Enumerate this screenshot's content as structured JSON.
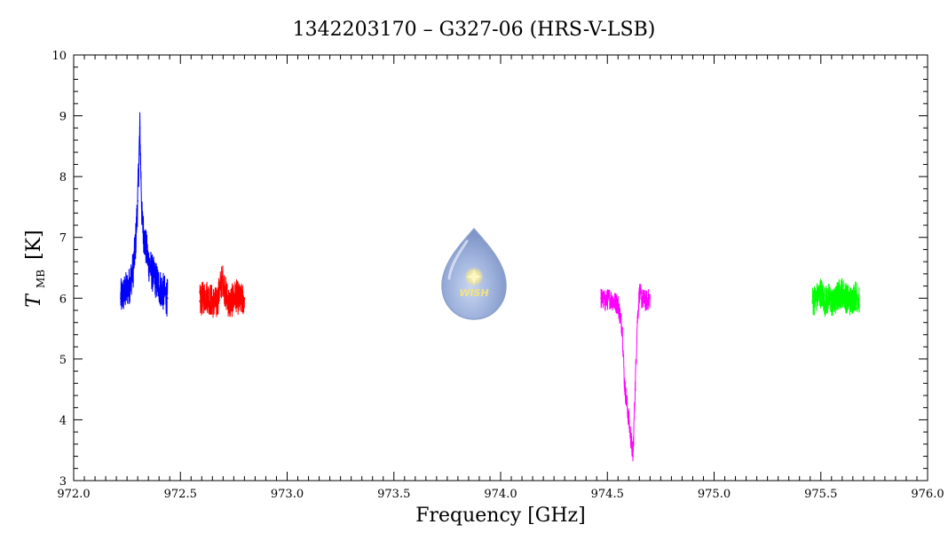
{
  "chart_data": {
    "type": "line",
    "title": "1342203170 – G327-06 (HRS-V-LSB)",
    "xlabel": "Frequency [GHz]",
    "ylabel_main": "T",
    "ylabel_sub": "MB",
    "ylabel_unit": "[K]",
    "xlim": [
      972.0,
      976.0
    ],
    "ylim": [
      3,
      10
    ],
    "xticks": [
      "972.0",
      "972.5",
      "973.0",
      "973.5",
      "974.0",
      "974.5",
      "975.0",
      "975.5",
      "976.0"
    ],
    "yticks": [
      "3",
      "4",
      "5",
      "6",
      "7",
      "8",
      "9",
      "10"
    ],
    "grid": false,
    "legend": "none",
    "series": [
      {
        "color": "#0000ff",
        "x": [
          972.22,
          972.24,
          972.26,
          972.28,
          972.29,
          972.3,
          972.31,
          972.32,
          972.33,
          972.34,
          972.35,
          972.37,
          972.4,
          972.42,
          972.44
        ],
        "y": [
          6.0,
          6.1,
          6.2,
          6.5,
          6.9,
          7.6,
          8.8,
          7.3,
          7.0,
          6.8,
          6.6,
          6.4,
          6.2,
          6.1,
          6.0
        ]
      },
      {
        "color": "#ff0000",
        "x": [
          972.59,
          972.62,
          972.65,
          972.67,
          972.69,
          972.7,
          972.71,
          972.73,
          972.76,
          972.78,
          972.8
        ],
        "y": [
          5.95,
          6.05,
          5.95,
          5.9,
          6.25,
          6.3,
          6.1,
          5.9,
          6.05,
          5.95,
          6.0
        ]
      },
      {
        "color": "#ff00ff",
        "x": [
          974.47,
          974.49,
          974.51,
          974.53,
          974.55,
          974.57,
          974.58,
          974.59,
          974.6,
          974.61,
          974.62,
          974.63,
          974.64,
          974.65,
          974.66,
          974.68,
          974.7
        ],
        "y": [
          6.0,
          5.95,
          6.0,
          5.95,
          5.9,
          5.5,
          4.6,
          4.3,
          4.0,
          3.7,
          3.4,
          4.5,
          5.6,
          6.1,
          6.0,
          5.95,
          6.0
        ]
      },
      {
        "color": "#00ff00",
        "x": [
          975.46,
          975.48,
          975.5,
          975.52,
          975.54,
          975.56,
          975.58,
          975.6,
          975.62,
          975.64,
          975.66,
          975.68
        ],
        "y": [
          5.95,
          6.0,
          6.1,
          5.95,
          6.0,
          5.9,
          6.05,
          6.1,
          6.0,
          5.95,
          6.05,
          6.0
        ]
      }
    ]
  },
  "logo": {
    "label": "WISH"
  }
}
